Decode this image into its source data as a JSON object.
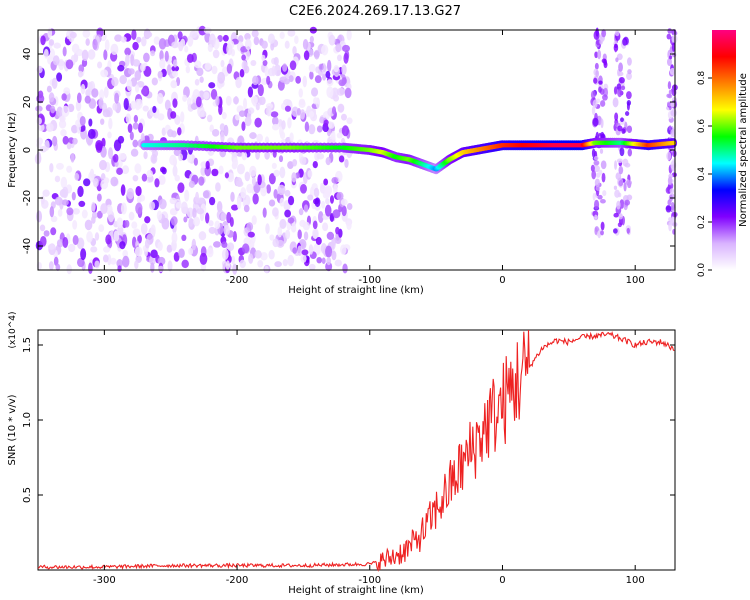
{
  "title": "C2E6.2024.269.17.13.G27",
  "chart_data": [
    {
      "type": "heatmap",
      "xlabel": "Height of straight line (km)",
      "ylabel": "Frequency (Hz)",
      "xlim": [
        -350,
        130
      ],
      "ylim": [
        -50,
        50
      ],
      "xticks": [
        -300,
        -200,
        -100,
        0,
        100
      ],
      "xtick_labels": [
        "-300",
        "-200",
        "-100",
        "0",
        "100"
      ],
      "yticks": [
        -40,
        -20,
        0,
        20,
        40
      ],
      "ytick_labels": [
        "-40",
        "-20",
        "0",
        "20",
        "40"
      ],
      "colorbar": {
        "label": "Normalized spectral amplitude",
        "range": [
          0,
          1
        ],
        "ticks": [
          0.0,
          0.2,
          0.4,
          0.6,
          0.8
        ],
        "tick_labels": [
          "0.0",
          "0.2",
          "0.4",
          "0.6",
          "0.8"
        ],
        "colors": [
          "#ffffff",
          "#d9b3ff",
          "#8000ff",
          "#0000ff",
          "#00ffff",
          "#00ff00",
          "#ffff00",
          "#ff8000",
          "#ff0000",
          "#ff0080"
        ]
      },
      "signal_trace": {
        "x": [
          -270,
          -240,
          -200,
          -160,
          -120,
          -100,
          -90,
          -80,
          -70,
          -60,
          -50,
          -40,
          -30,
          -20,
          -10,
          0,
          20,
          40,
          60,
          70,
          90,
          110,
          130
        ],
        "y": [
          2,
          2,
          1,
          1,
          1,
          0,
          -1,
          -3,
          -4,
          -6,
          -8,
          -4,
          -1,
          0,
          1,
          2,
          2,
          2,
          2,
          3,
          3,
          2,
          3
        ],
        "amplitude": [
          0.45,
          0.5,
          0.6,
          0.6,
          0.55,
          0.6,
          0.65,
          0.55,
          0.6,
          0.5,
          0.4,
          0.6,
          0.7,
          0.75,
          0.8,
          0.85,
          0.9,
          0.95,
          0.95,
          0.6,
          0.5,
          0.85,
          0.7
        ]
      },
      "noise_region_x": [
        -350,
        -115
      ]
    },
    {
      "type": "line",
      "xlabel": "Height of straight line (km)",
      "ylabel": "SNR (10 * v/v)",
      "y_scale_label": "(x10^4)",
      "xlim": [
        -350,
        130
      ],
      "ylim": [
        0,
        1.6
      ],
      "xticks": [
        -300,
        -200,
        -100,
        0,
        100
      ],
      "xtick_labels": [
        "-300",
        "-200",
        "-100",
        "0",
        "100"
      ],
      "yticks": [
        0.5,
        1.0,
        1.5
      ],
      "ytick_labels": [
        "0.5",
        "1.0",
        "1.5"
      ],
      "color": "#ee2222",
      "x": [
        -350,
        -300,
        -250,
        -200,
        -150,
        -100,
        -90,
        -80,
        -70,
        -60,
        -50,
        -40,
        -30,
        -20,
        -10,
        0,
        10,
        20,
        30,
        40,
        50,
        60,
        70,
        80,
        90,
        100,
        110,
        120,
        130
      ],
      "y": [
        0.02,
        0.02,
        0.03,
        0.03,
        0.03,
        0.04,
        0.06,
        0.1,
        0.15,
        0.25,
        0.4,
        0.55,
        0.7,
        0.85,
        1.0,
        1.1,
        1.25,
        1.35,
        1.48,
        1.53,
        1.52,
        1.55,
        1.56,
        1.57,
        1.54,
        1.5,
        1.52,
        1.52,
        1.47
      ]
    }
  ]
}
